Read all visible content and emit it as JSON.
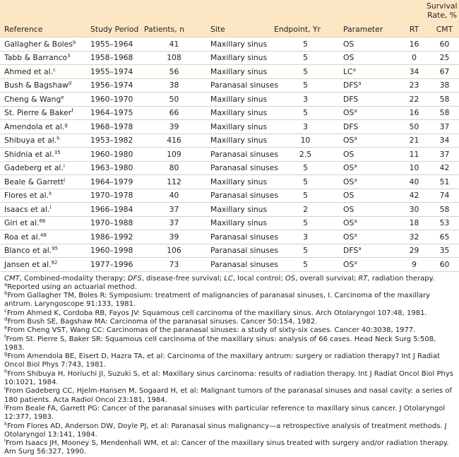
{
  "table": {
    "header": {
      "reference": "Reference",
      "period": "Study Period",
      "patients": "Patients, n",
      "site": "Site",
      "endpoint": "Endpoint, Yr",
      "parameter": "Parameter",
      "survival": "Survival Rate, %",
      "rt": "RT",
      "cmt": "CMT"
    },
    "rows": [
      {
        "ref": "Gallagher & Boles",
        "sup": "b",
        "period": "1955–1964",
        "patients": 41,
        "site": "Maxillary sinus",
        "endpoint": 5,
        "param": "OS",
        "param_sup": null,
        "rt": 16,
        "cmt": 60
      },
      {
        "ref": "Tabb & Barranco",
        "sup": "3",
        "period": "1958–1968",
        "patients": 108,
        "site": "Maxillary sinus",
        "endpoint": 5,
        "param": "OS",
        "param_sup": null,
        "rt": 0,
        "cmt": 25
      },
      {
        "ref": "Ahmed et al.",
        "sup": "c",
        "period": "1955–1974",
        "patients": 56,
        "site": "Maxillary sinus",
        "endpoint": 5,
        "param": "LC",
        "param_sup": "a",
        "rt": 34,
        "cmt": 67
      },
      {
        "ref": "Bush & Bagshaw",
        "sup": "d",
        "period": "1956–1974",
        "patients": 38,
        "site": "Paranasal sinuses",
        "endpoint": 5,
        "param": "DFS",
        "param_sup": "a",
        "rt": 23,
        "cmt": 38
      },
      {
        "ref": "Cheng & Wang",
        "sup": "e",
        "period": "1960–1970",
        "patients": 50,
        "site": "Maxillary sinus",
        "endpoint": 3,
        "param": "DFS",
        "param_sup": null,
        "rt": 22,
        "cmt": 58
      },
      {
        "ref": "St. Pierre & Baker",
        "sup": "f",
        "period": "1964–1975",
        "patients": 66,
        "site": "Maxillary sinus",
        "endpoint": 5,
        "param": "OS",
        "param_sup": "a",
        "rt": 16,
        "cmt": 58
      },
      {
        "ref": "Amendola et al.",
        "sup": "g",
        "period": "1968–1978",
        "patients": 39,
        "site": "Maxillary sinus",
        "endpoint": 3,
        "param": "DFS",
        "param_sup": null,
        "rt": 50,
        "cmt": 37
      },
      {
        "ref": "Shibuya et al.",
        "sup": "h",
        "period": "1953–1982",
        "patients": 416,
        "site": "Maxillary sinus",
        "endpoint": 10,
        "param": "OS",
        "param_sup": "a",
        "rt": 21,
        "cmt": 34
      },
      {
        "ref": "Shidnia et al.",
        "sup": "35",
        "period": "1960–1980",
        "patients": 109,
        "site": "Paranasal sinuses",
        "endpoint": 2.5,
        "param": "OS",
        "param_sup": null,
        "rt": 11,
        "cmt": 37
      },
      {
        "ref": "Gadeberg et al.",
        "sup": "i",
        "period": "1963–1980",
        "patients": 80,
        "site": "Paranasal sinuses",
        "endpoint": 5,
        "param": "OS",
        "param_sup": "a",
        "rt": 10,
        "cmt": 42
      },
      {
        "ref": "Beale & Garrett",
        "sup": "j",
        "period": "1964–1979",
        "patients": 112,
        "site": "Maxillary sinus",
        "endpoint": 5,
        "param": "OS",
        "param_sup": "a",
        "rt": 40,
        "cmt": 51
      },
      {
        "ref": "Flores et al.",
        "sup": "k",
        "period": "1970–1978",
        "patients": 40,
        "site": "Paranasal sinuses",
        "endpoint": 5,
        "param": "OS",
        "param_sup": null,
        "rt": 42,
        "cmt": 74
      },
      {
        "ref": "Isaacs et al.",
        "sup": "l",
        "period": "1966–1984",
        "patients": 37,
        "site": "Maxillary sinus",
        "endpoint": 2,
        "param": "OS",
        "param_sup": null,
        "rt": 30,
        "cmt": 58
      },
      {
        "ref": "Giri et al.",
        "sup": "66",
        "period": "1970–1988",
        "patients": 37,
        "site": "Maxillary sinus",
        "endpoint": 5,
        "param": "OS",
        "param_sup": "a",
        "rt": 18,
        "cmt": 53
      },
      {
        "ref": "Roa et al.",
        "sup": "48",
        "period": "1986–1992",
        "patients": 39,
        "site": "Paranasal sinuses",
        "endpoint": 3,
        "param": "OS",
        "param_sup": "a",
        "rt": 32,
        "cmt": 65
      },
      {
        "ref": "Blanco et al.",
        "sup": "95",
        "period": "1960–1998",
        "patients": 106,
        "site": "Paranasal sinuses",
        "endpoint": 5,
        "param": "DFS",
        "param_sup": "a",
        "rt": 29,
        "cmt": 35
      },
      {
        "ref": "Jansen et al.",
        "sup": "92",
        "period": "1977–1996",
        "patients": 73,
        "site": "Paranasal sinuses",
        "endpoint": 5,
        "param": "OS",
        "param_sup": "a",
        "rt": 9,
        "cmt": 60
      }
    ]
  },
  "abbreviations": [
    {
      "abbr": "CMT",
      "text": ", Combined-modality therapy; "
    },
    {
      "abbr": "DFS",
      "text": ", disease-free survival; "
    },
    {
      "abbr": "LC",
      "text": ", local control; "
    },
    {
      "abbr": "OS",
      "text": ", overall survival; "
    },
    {
      "abbr": "RT",
      "text": ", radiation therapy."
    }
  ],
  "footnotes": [
    {
      "sup": "a",
      "text": "Reported using an actuarial method."
    },
    {
      "sup": "b",
      "text": "From Gallagher TM, Boles R: Symposium: treatment of malignancies of paranasal sinuses, I. Carcinoma of the maxillary antrum. Laryngoscope 91:133, 1981."
    },
    {
      "sup": "c",
      "text": "From Ahmed K, Cordoba RB, Fayos JV: Squamous cell carcinoma of the maxillary sinus. Arch Otolaryngol 107:48, 1981."
    },
    {
      "sup": "d",
      "text": "From Bush SE, Bagshaw MA: Carcinoma of the paranasal sinuses. Cancer 50:154, 1982."
    },
    {
      "sup": "e",
      "text": "From Cheng VST, Wang CC: Carcinomas of the paranasal sinuses: a study of sixty-six cases. Cancer 40:3038, 1977."
    },
    {
      "sup": "f",
      "text": "From St. Pierre S, Baker SR: Squamous cell carcinoma of the maxillary sinus: analysis of 66 cases. Head Neck Surg 5:508, 1983."
    },
    {
      "sup": "g",
      "text": "From Amendola BE, Eisert D, Hazra TA, et al: Carcinoma of the maxillary antrum: surgery or radiation therapy? Int J Radiat Oncol Biol Phys 7:743, 1981."
    },
    {
      "sup": "h",
      "text": "From Shibuya H, Horiuchi JI, Suzuki S, et al: Maxillary sinus carcinoma: results of radiation therapy. Int J Radiat Oncol Biol Phys 10:1021, 1984."
    },
    {
      "sup": "i",
      "text": "From Gadeberg CC, Hjelm-Hansen M, Sogaard H, et al: Malignant tumors of the paranasal sinuses and nasal cavity: a series of 180 patients. Acta Radiol Oncol 23:181, 1984."
    },
    {
      "sup": "j",
      "text": "From Beale FA, Garrett PG: Cancer of the paranasal sinuses with particular reference to maxillary sinus cancer. J Otolaryngol 12:377, 1983."
    },
    {
      "sup": "k",
      "text": "From Flores AD, Anderson DW, Doyle PJ, et al: Paranasal sinus malignancy—a retrospective analysis of treatment methods. J Otolaryngol 13:141, 1984."
    },
    {
      "sup": "l",
      "text": "From Isaacs JH, Mooney S, Mendenhall WM, et al: Cancer of the maxillary sinus treated with surgery and/or radiation therapy. Am Surg 56:327, 1990."
    }
  ]
}
